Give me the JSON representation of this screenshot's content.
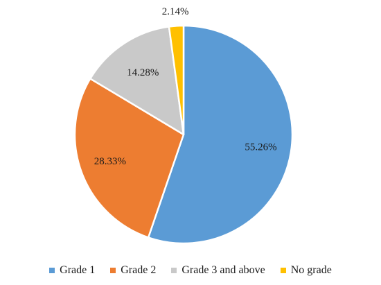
{
  "chart_data": {
    "type": "pie",
    "title": "",
    "start_angle_deg": 0,
    "direction": "clockwise",
    "slices": [
      {
        "label": "Grade 1",
        "value": 55.26,
        "display": "55.26%",
        "color": "#5b9bd5"
      },
      {
        "label": "Grade 2",
        "value": 28.33,
        "display": "28.33%",
        "color": "#ed7d31"
      },
      {
        "label": "Grade 3 and above",
        "value": 14.28,
        "display": "14.28%",
        "color": "#c9c9c9"
      },
      {
        "label": "No grade",
        "value": 2.14,
        "display": "2.14%",
        "color": "#ffc000"
      }
    ],
    "legend_position": "bottom"
  }
}
